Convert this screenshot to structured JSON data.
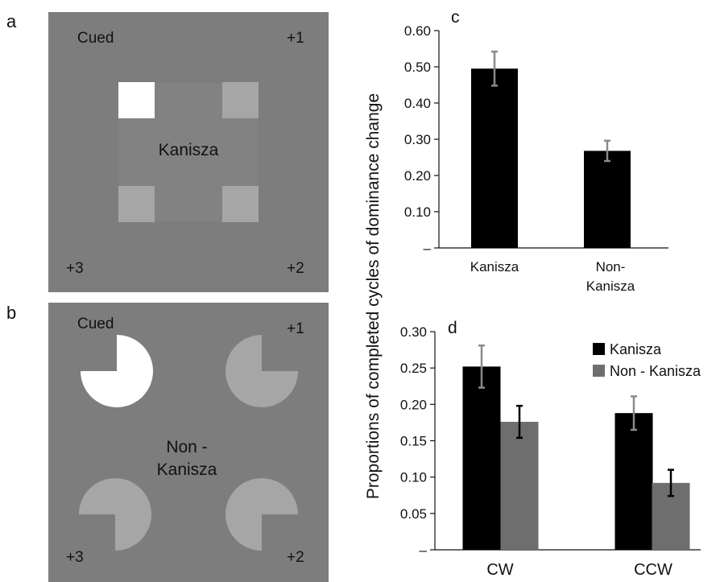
{
  "panels": {
    "a": {
      "label": "a",
      "cued": "Cued",
      "pos1": "+1",
      "pos2": "+2",
      "pos3": "+3",
      "center": "Kanisza"
    },
    "b": {
      "label": "b",
      "cued": "Cued",
      "pos1": "+1",
      "pos2": "+2",
      "pos3": "+3",
      "center_line1": "Non -",
      "center_line2": "Kanisza"
    }
  },
  "y_axis_label": "Proportions of completed cycles of dominance change",
  "colors": {
    "panel_bg": "#7d7d7d",
    "inducer": "#a6a6a6",
    "cued": "#ffffff",
    "kanisza_bar": "#000000",
    "non_kanisza_bar": "#6e6e6e",
    "error_c": "#8a8a8a",
    "error_d": "#000000"
  },
  "chart_data": [
    {
      "panel": "c",
      "type": "bar",
      "categories": [
        "Kanisza",
        "Non-\nKanisza"
      ],
      "values": [
        0.495,
        0.268
      ],
      "errors": [
        0.047,
        0.028
      ],
      "yticks": [
        "–",
        "0.10",
        "0.20",
        "0.30",
        "0.40",
        "0.50",
        "0.60"
      ],
      "ylim": [
        0,
        0.6
      ],
      "grid": false
    },
    {
      "panel": "d",
      "type": "bar",
      "categories": [
        "CW",
        "CCW"
      ],
      "series": [
        {
          "name": "Kanisza",
          "values": [
            0.252,
            0.188
          ],
          "errors": [
            0.029,
            0.023
          ]
        },
        {
          "name": "Non - Kanisza",
          "values": [
            0.176,
            0.092
          ],
          "errors": [
            0.022,
            0.018
          ]
        }
      ],
      "yticks": [
        "–",
        "0.05",
        "0.10",
        "0.15",
        "0.20",
        "0.25",
        "0.30"
      ],
      "ylim": [
        0,
        0.3
      ],
      "legend": "top-right",
      "grid": false
    }
  ]
}
